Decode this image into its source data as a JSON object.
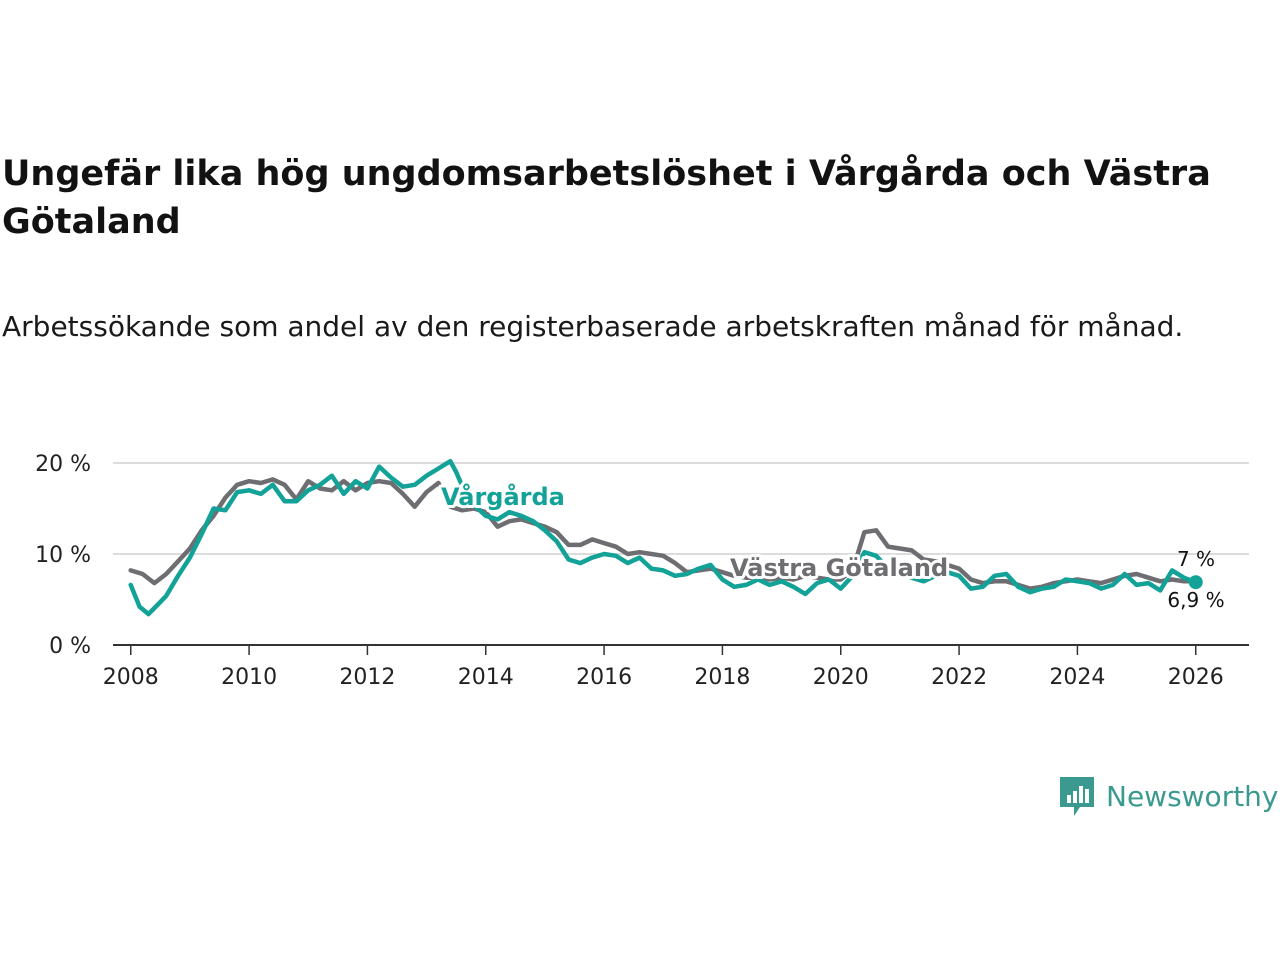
{
  "title": "Ungefär lika hög ungdomsarbetslöshet i Vårgårda och Västra Götaland",
  "subtitle": "Arbetssökande som andel av den registerbaserade arbetskraften månad för månad.",
  "brand": {
    "name": "Newsworthy",
    "color": "#3a9a8f"
  },
  "chart_data": {
    "type": "line",
    "title": "Ungefär lika hög ungdomsarbetslöshet i Vårgårda och Västra Götaland",
    "xlabel": "",
    "ylabel": "",
    "xlim": [
      2007.7,
      2026.9
    ],
    "ylim": [
      0,
      20
    ],
    "grid": true,
    "y_ticks": [
      0,
      10,
      20
    ],
    "y_tick_labels": [
      "0 %",
      "10 %",
      "20 %"
    ],
    "x_ticks": [
      2008,
      2010,
      2012,
      2014,
      2016,
      2018,
      2020,
      2022,
      2024,
      2026
    ],
    "x_tick_labels": [
      "2008",
      "2010",
      "2012",
      "2014",
      "2016",
      "2018",
      "2020",
      "2022",
      "2024",
      "2026"
    ],
    "series": [
      {
        "name": "Västra Götaland",
        "color": "#6e6d72",
        "label_text": "Västra Götaland",
        "end_label": "7 %",
        "points": [
          [
            2008.0,
            8.2
          ],
          [
            2008.2,
            7.8
          ],
          [
            2008.4,
            6.8
          ],
          [
            2008.6,
            7.8
          ],
          [
            2008.8,
            9.2
          ],
          [
            2009.0,
            10.6
          ],
          [
            2009.2,
            12.6
          ],
          [
            2009.4,
            14.2
          ],
          [
            2009.6,
            16.2
          ],
          [
            2009.8,
            17.6
          ],
          [
            2010.0,
            18.0
          ],
          [
            2010.2,
            17.8
          ],
          [
            2010.4,
            18.2
          ],
          [
            2010.6,
            17.6
          ],
          [
            2010.8,
            16.0
          ],
          [
            2011.0,
            18.0
          ],
          [
            2011.2,
            17.2
          ],
          [
            2011.4,
            17.0
          ],
          [
            2011.6,
            18.0
          ],
          [
            2011.8,
            17.0
          ],
          [
            2012.0,
            17.8
          ],
          [
            2012.2,
            18.0
          ],
          [
            2012.4,
            17.8
          ],
          [
            2012.6,
            16.6
          ],
          [
            2012.8,
            15.2
          ],
          [
            2013.0,
            16.8
          ],
          [
            2013.2,
            17.8
          ],
          [
            2013.4,
            15.2
          ],
          [
            2013.6,
            14.8
          ],
          [
            2013.8,
            15.0
          ],
          [
            2014.0,
            14.6
          ],
          [
            2014.2,
            13.0
          ],
          [
            2014.4,
            13.6
          ],
          [
            2014.6,
            13.8
          ],
          [
            2014.8,
            13.4
          ],
          [
            2015.0,
            13.0
          ],
          [
            2015.2,
            12.4
          ],
          [
            2015.4,
            11.0
          ],
          [
            2015.6,
            11.0
          ],
          [
            2015.8,
            11.6
          ],
          [
            2016.0,
            11.2
          ],
          [
            2016.2,
            10.8
          ],
          [
            2016.4,
            10.0
          ],
          [
            2016.6,
            10.2
          ],
          [
            2016.8,
            10.0
          ],
          [
            2017.0,
            9.8
          ],
          [
            2017.2,
            9.0
          ],
          [
            2017.4,
            8.0
          ],
          [
            2017.6,
            8.2
          ],
          [
            2017.8,
            8.4
          ],
          [
            2018.0,
            8.0
          ],
          [
            2018.2,
            7.6
          ],
          [
            2018.4,
            7.4
          ],
          [
            2018.6,
            7.4
          ],
          [
            2018.8,
            7.2
          ],
          [
            2019.0,
            7.4
          ],
          [
            2019.2,
            7.2
          ],
          [
            2019.4,
            7.6
          ],
          [
            2019.6,
            7.4
          ],
          [
            2019.8,
            7.2
          ],
          [
            2020.0,
            7.2
          ],
          [
            2020.2,
            8.2
          ],
          [
            2020.4,
            12.4
          ],
          [
            2020.6,
            12.6
          ],
          [
            2020.8,
            10.8
          ],
          [
            2021.0,
            10.6
          ],
          [
            2021.2,
            10.4
          ],
          [
            2021.4,
            9.4
          ],
          [
            2021.6,
            9.2
          ],
          [
            2021.8,
            8.8
          ],
          [
            2022.0,
            8.4
          ],
          [
            2022.2,
            7.2
          ],
          [
            2022.4,
            6.8
          ],
          [
            2022.6,
            7.0
          ],
          [
            2022.8,
            7.0
          ],
          [
            2023.0,
            6.6
          ],
          [
            2023.2,
            6.2
          ],
          [
            2023.4,
            6.4
          ],
          [
            2023.6,
            6.8
          ],
          [
            2023.8,
            7.0
          ],
          [
            2024.0,
            7.2
          ],
          [
            2024.2,
            7.0
          ],
          [
            2024.4,
            6.8
          ],
          [
            2024.6,
            7.2
          ],
          [
            2024.8,
            7.6
          ],
          [
            2025.0,
            7.8
          ],
          [
            2025.2,
            7.4
          ],
          [
            2025.4,
            7.0
          ],
          [
            2025.6,
            7.2
          ],
          [
            2025.8,
            7.0
          ],
          [
            2026.0,
            7.0
          ]
        ]
      },
      {
        "name": "Vårgårda",
        "color": "#13a298",
        "label_text": "Vårgårda",
        "end_label": "6,9 %",
        "points": [
          [
            2008.0,
            6.6
          ],
          [
            2008.15,
            4.2
          ],
          [
            2008.3,
            3.4
          ],
          [
            2008.45,
            4.4
          ],
          [
            2008.6,
            5.4
          ],
          [
            2008.8,
            7.6
          ],
          [
            2009.0,
            9.6
          ],
          [
            2009.2,
            12.2
          ],
          [
            2009.4,
            15.0
          ],
          [
            2009.6,
            14.8
          ],
          [
            2009.8,
            16.8
          ],
          [
            2010.0,
            17.0
          ],
          [
            2010.2,
            16.6
          ],
          [
            2010.4,
            17.6
          ],
          [
            2010.6,
            15.8
          ],
          [
            2010.8,
            15.8
          ],
          [
            2011.0,
            17.0
          ],
          [
            2011.2,
            17.6
          ],
          [
            2011.4,
            18.6
          ],
          [
            2011.6,
            16.6
          ],
          [
            2011.8,
            18.0
          ],
          [
            2012.0,
            17.2
          ],
          [
            2012.2,
            19.6
          ],
          [
            2012.4,
            18.4
          ],
          [
            2012.6,
            17.4
          ],
          [
            2012.8,
            17.6
          ],
          [
            2013.0,
            18.6
          ],
          [
            2013.2,
            19.4
          ],
          [
            2013.4,
            20.2
          ],
          [
            2013.5,
            19.0
          ],
          [
            2013.7,
            16.0
          ],
          [
            2014.0,
            14.2
          ],
          [
            2014.2,
            13.8
          ],
          [
            2014.4,
            14.6
          ],
          [
            2014.6,
            14.2
          ],
          [
            2014.8,
            13.6
          ],
          [
            2015.0,
            12.6
          ],
          [
            2015.2,
            11.4
          ],
          [
            2015.4,
            9.4
          ],
          [
            2015.6,
            9.0
          ],
          [
            2015.8,
            9.6
          ],
          [
            2016.0,
            10.0
          ],
          [
            2016.2,
            9.8
          ],
          [
            2016.4,
            9.0
          ],
          [
            2016.6,
            9.6
          ],
          [
            2016.8,
            8.4
          ],
          [
            2017.0,
            8.2
          ],
          [
            2017.2,
            7.6
          ],
          [
            2017.4,
            7.8
          ],
          [
            2017.6,
            8.4
          ],
          [
            2017.8,
            8.8
          ],
          [
            2018.0,
            7.2
          ],
          [
            2018.2,
            6.4
          ],
          [
            2018.4,
            6.6
          ],
          [
            2018.6,
            7.2
          ],
          [
            2018.8,
            6.6
          ],
          [
            2019.0,
            7.0
          ],
          [
            2019.2,
            6.4
          ],
          [
            2019.4,
            5.6
          ],
          [
            2019.6,
            6.8
          ],
          [
            2019.8,
            7.2
          ],
          [
            2020.0,
            6.2
          ],
          [
            2020.2,
            7.6
          ],
          [
            2020.4,
            10.2
          ],
          [
            2020.6,
            9.8
          ],
          [
            2020.8,
            8.4
          ],
          [
            2021.0,
            8.0
          ],
          [
            2021.2,
            7.4
          ],
          [
            2021.4,
            7.0
          ],
          [
            2021.6,
            7.6
          ],
          [
            2021.8,
            8.0
          ],
          [
            2022.0,
            7.6
          ],
          [
            2022.2,
            6.2
          ],
          [
            2022.4,
            6.4
          ],
          [
            2022.6,
            7.6
          ],
          [
            2022.8,
            7.8
          ],
          [
            2023.0,
            6.4
          ],
          [
            2023.2,
            5.8
          ],
          [
            2023.4,
            6.2
          ],
          [
            2023.6,
            6.4
          ],
          [
            2023.8,
            7.2
          ],
          [
            2024.0,
            7.0
          ],
          [
            2024.2,
            6.8
          ],
          [
            2024.4,
            6.2
          ],
          [
            2024.6,
            6.6
          ],
          [
            2024.8,
            7.8
          ],
          [
            2025.0,
            6.6
          ],
          [
            2025.2,
            6.8
          ],
          [
            2025.4,
            6.0
          ],
          [
            2025.6,
            8.2
          ],
          [
            2025.8,
            7.4
          ],
          [
            2026.0,
            6.9
          ]
        ]
      }
    ]
  }
}
